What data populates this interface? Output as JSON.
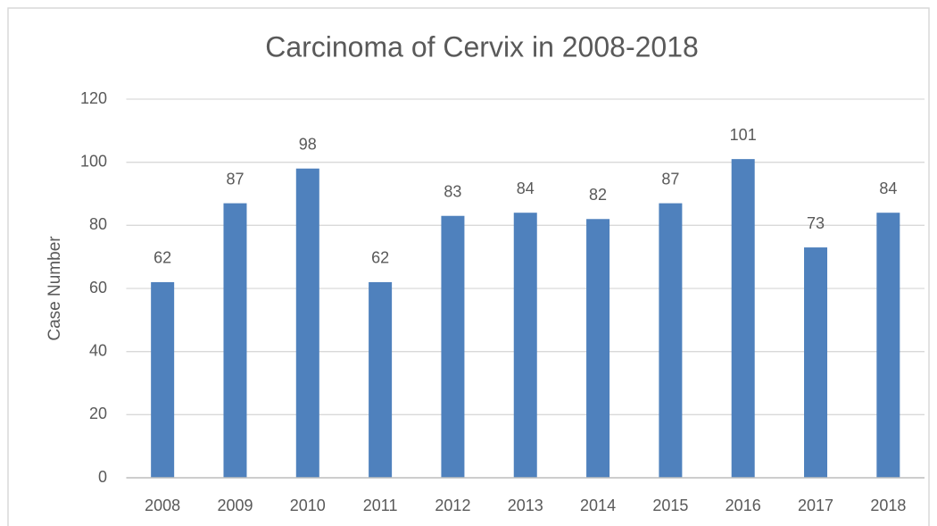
{
  "chart_data": {
    "type": "bar",
    "title": "Carcinoma of Cervix in 2008-2018",
    "y_label": "Case Number",
    "categories": [
      "2008",
      "2009",
      "2010",
      "2011",
      "2012",
      "2013",
      "2014",
      "2015",
      "2016",
      "2017",
      "2018"
    ],
    "values": [
      62,
      87,
      98,
      62,
      83,
      84,
      82,
      87,
      101,
      73,
      84
    ],
    "color": "#4f81bd",
    "ylim": [
      0,
      120
    ],
    "yticks": [
      0,
      20,
      40,
      60,
      80,
      100,
      120
    ],
    "grid": true
  }
}
